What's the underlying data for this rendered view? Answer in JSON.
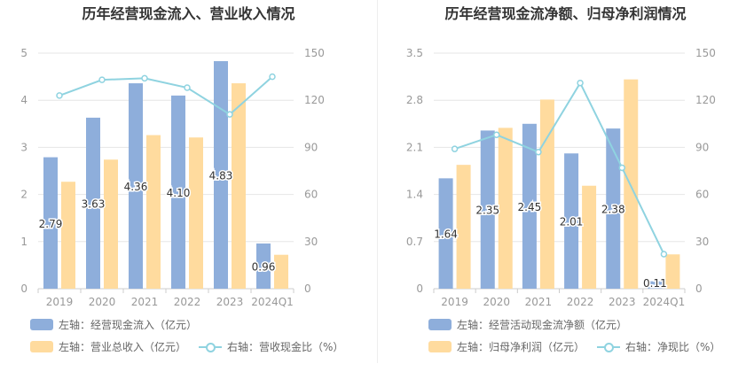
{
  "colors": {
    "bar1": "#8eaedb",
    "bar2": "#ffdb9e",
    "line": "#8fd3e0",
    "axis": "#999999",
    "grid": "#e6e6e6"
  },
  "left": {
    "title": "历年经营现金流入、营业收入情况",
    "legend": {
      "bar1": "左轴：经营现金流入（亿元）",
      "bar2": "左轴：营业总收入（亿元）",
      "line": "右轴：营收现金比（%）"
    }
  },
  "right": {
    "title": "历年经营现金流净额、归母净利润情况",
    "legend": {
      "bar1": "左轴：经营活动现金流净额（亿元）",
      "bar2": "左轴：归母净利润（亿元）",
      "line": "右轴：净现比（%）"
    }
  },
  "chart_data": [
    {
      "type": "bar",
      "title": "历年经营现金流入、营业收入情况",
      "categories": [
        "2019",
        "2020",
        "2021",
        "2022",
        "2023",
        "2024Q1"
      ],
      "series": [
        {
          "name": "左轴：经营现金流入（亿元）",
          "axis": "left",
          "kind": "bar",
          "values": [
            2.79,
            3.63,
            4.36,
            4.1,
            4.83,
            0.96
          ],
          "labels": [
            "2.79",
            "3.63",
            "4.36",
            "4.10",
            "4.83",
            "0.96"
          ]
        },
        {
          "name": "左轴：营业总收入（亿元）",
          "axis": "left",
          "kind": "bar",
          "values": [
            2.27,
            2.74,
            3.26,
            3.21,
            4.36,
            0.72
          ]
        },
        {
          "name": "右轴：营收现金比（%）",
          "axis": "right",
          "kind": "line",
          "values": [
            123,
            133,
            134,
            128,
            111,
            135
          ]
        }
      ],
      "yleft": {
        "ylim": [
          0,
          5
        ],
        "ticks": [
          "0",
          "1",
          "2",
          "3",
          "4",
          "5"
        ]
      },
      "yright": {
        "ylim": [
          0,
          150
        ],
        "ticks": [
          "0",
          "30",
          "60",
          "90",
          "120",
          "150"
        ]
      },
      "grid": true,
      "legend_position": "bottom"
    },
    {
      "type": "bar",
      "title": "历年经营现金流净额、归母净利润情况",
      "categories": [
        "2019",
        "2020",
        "2021",
        "2022",
        "2023",
        "2024Q1"
      ],
      "series": [
        {
          "name": "左轴：经营活动现金流净额（亿元）",
          "axis": "left",
          "kind": "bar",
          "values": [
            1.64,
            2.35,
            2.45,
            2.01,
            2.38,
            0.11
          ],
          "labels": [
            "1.64",
            "2.35",
            "2.45",
            "2.01",
            "2.38",
            "0.11"
          ]
        },
        {
          "name": "左轴：归母净利润（亿元）",
          "axis": "left",
          "kind": "bar",
          "values": [
            1.84,
            2.39,
            2.81,
            1.53,
            3.11,
            0.51
          ]
        },
        {
          "name": "右轴：净现比（%）",
          "axis": "right",
          "kind": "line",
          "values": [
            89,
            98,
            87,
            131,
            77,
            22
          ]
        }
      ],
      "yleft": {
        "ylim": [
          0,
          3.5
        ],
        "ticks": [
          "0",
          "0.7",
          "1.4",
          "2.1",
          "2.8",
          "3.5"
        ]
      },
      "yright": {
        "ylim": [
          0,
          150
        ],
        "ticks": [
          "0",
          "30",
          "60",
          "90",
          "120",
          "150"
        ]
      },
      "grid": true,
      "legend_position": "bottom"
    }
  ]
}
